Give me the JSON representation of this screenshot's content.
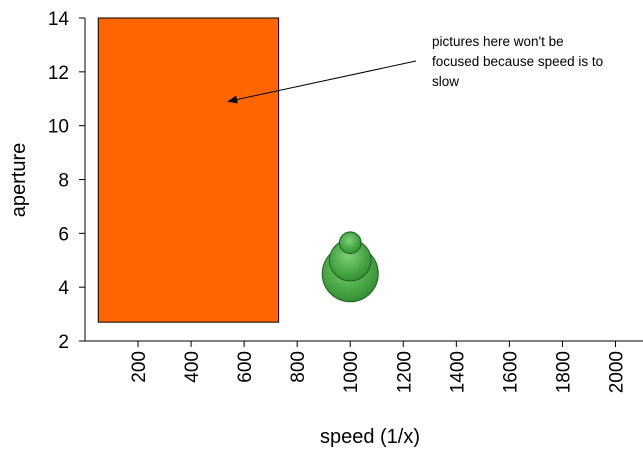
{
  "chart_data": {
    "type": "bubble",
    "xlabel": "speed (1/x)",
    "ylabel": "aperture",
    "xlim": [
      0,
      2100
    ],
    "ylim": [
      2,
      14
    ],
    "x_ticks": [
      200,
      400,
      600,
      800,
      1000,
      1200,
      1400,
      1600,
      1800,
      2000
    ],
    "y_ticks": [
      2,
      4,
      6,
      8,
      10,
      12,
      14
    ],
    "grid": false,
    "legend": "none",
    "region": {
      "x0": 50,
      "x1": 730,
      "y0": 2.7,
      "y1": 14,
      "color": "#ff6600"
    },
    "bubbles": [
      {
        "x": 1000,
        "y": 4.5,
        "size": 1.0
      },
      {
        "x": 1000,
        "y": 5.0,
        "size": 0.55
      },
      {
        "x": 1000,
        "y": 5.65,
        "size": 0.15
      }
    ],
    "bubble_color": "#3a9a3a",
    "annotation": {
      "lines": [
        "pictures here won't be",
        "focused because speed is to",
        "slow"
      ],
      "arrow_target": {
        "x": 540,
        "y": 10.9
      }
    }
  }
}
